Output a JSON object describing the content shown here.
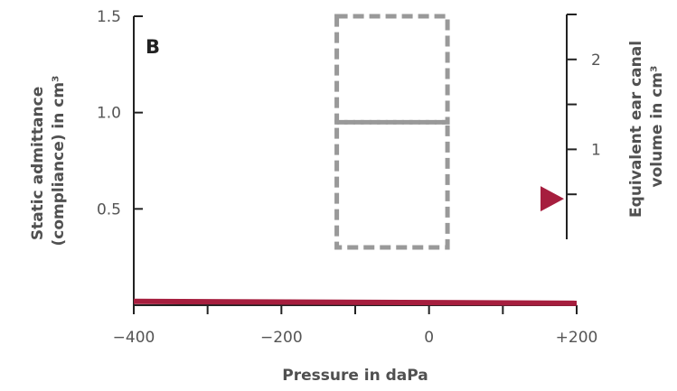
{
  "chart_data": {
    "type": "line",
    "panel_label": "B",
    "xlabel": "Pressure in daPa",
    "ylabel_left": [
      "Static admittance",
      "(compliance) in cm³"
    ],
    "ylabel_right": [
      "Equivalent ear canal",
      "volume in cm³"
    ],
    "x_ticks": [
      "−400",
      "−200",
      "0",
      "+200"
    ],
    "x_tick_values": [
      -400,
      -200,
      0,
      200
    ],
    "xlim": [
      -400,
      200
    ],
    "y_left_ticks": [
      "0.5",
      "1.0",
      "1.5"
    ],
    "y_left_tick_values": [
      0.5,
      1.0,
      1.5
    ],
    "ylim_left": [
      0,
      1.5
    ],
    "y_right_ticks": [
      "1",
      "2"
    ],
    "y_right_tick_values": [
      1,
      2
    ],
    "ylim_right": [
      0,
      2.5
    ],
    "series": [
      {
        "x": [
          -400,
          200
        ],
        "y": [
          0.02,
          0.01
        ],
        "color": "#a61e3e"
      }
    ],
    "normal_region": {
      "x_range": [
        -125,
        25
      ],
      "y_lower": [
        0.3,
        0.95
      ],
      "y_upper": [
        0.95,
        1.5
      ],
      "color": "#999999",
      "style": "dashed"
    },
    "ear_canal_volume_marker": {
      "value": 0.45,
      "color": "#a61e3e",
      "shape": "triangle"
    },
    "grid": false
  }
}
